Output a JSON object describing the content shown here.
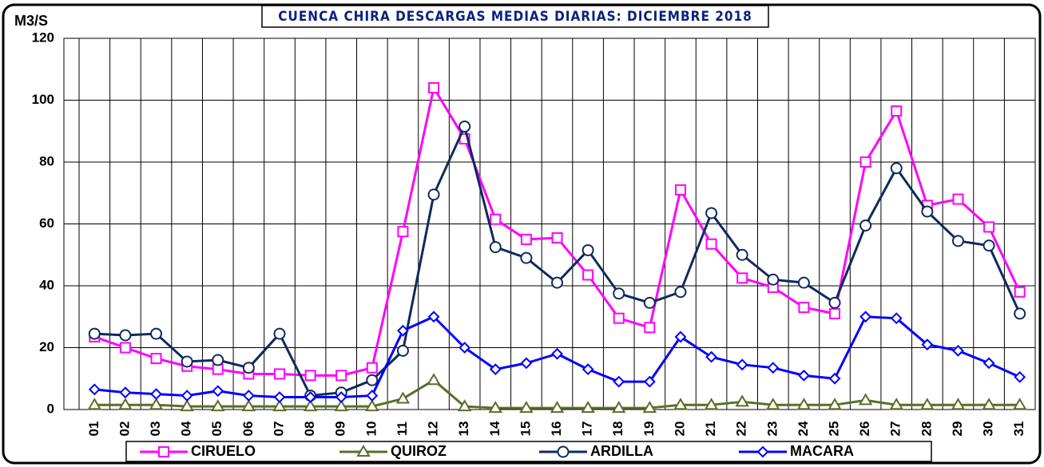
{
  "chart_data": {
    "type": "line",
    "title": "CUENCA CHIRA DESCARGAS MEDIAS DIARIAS: DICIEMBRE 2018",
    "y_label": "M3/S",
    "categories": [
      "01",
      "02",
      "03",
      "04",
      "05",
      "06",
      "07",
      "08",
      "09",
      "10",
      "11",
      "12",
      "13",
      "14",
      "15",
      "16",
      "17",
      "18",
      "19",
      "20",
      "21",
      "22",
      "23",
      "24",
      "25",
      "26",
      "27",
      "28",
      "29",
      "30",
      "31"
    ],
    "ylim": [
      0,
      120
    ],
    "yticks": [
      0,
      20,
      40,
      60,
      80,
      100,
      120
    ],
    "grid": true,
    "series": [
      {
        "name": "CIRUELO",
        "color": "#ff00ff",
        "marker": "square",
        "values": [
          23.5,
          20,
          16.5,
          14,
          13,
          11.5,
          11.5,
          11,
          11,
          13.5,
          57.5,
          104,
          87.5,
          61.5,
          55,
          55.5,
          43.5,
          29.5,
          26.5,
          71,
          53.5,
          42.5,
          39.5,
          33,
          31,
          80,
          96.5,
          66,
          68,
          59,
          38
        ]
      },
      {
        "name": "QUIROZ",
        "color": "#5a6e2a",
        "marker": "triangle",
        "values": [
          1.5,
          1.5,
          1.5,
          1,
          1,
          1,
          1,
          1,
          1,
          1,
          3.5,
          9.5,
          1,
          0.5,
          0.5,
          0.5,
          0.5,
          0.5,
          0.5,
          1.5,
          1.5,
          2.5,
          1.5,
          1.5,
          1.5,
          3,
          1.5,
          1.5,
          1.5,
          1.5,
          1.5
        ]
      },
      {
        "name": "ARDILLA",
        "color": "#0f2a5c",
        "marker": "circle",
        "values": [
          24.5,
          24,
          24.5,
          15.5,
          16,
          13.5,
          24.5,
          4.5,
          5.5,
          9.5,
          19,
          69.5,
          91.5,
          52.5,
          49,
          41,
          51.5,
          37.5,
          34.5,
          38,
          63.5,
          50,
          42,
          41,
          34.5,
          59.5,
          78,
          64,
          54.5,
          53,
          31
        ]
      },
      {
        "name": "MACARA",
        "color": "#0000ff",
        "marker": "diamond",
        "values": [
          6.5,
          5.5,
          5,
          4.5,
          6,
          4.5,
          4,
          4,
          4,
          4.5,
          25.5,
          30,
          20,
          13,
          15,
          18,
          13,
          9,
          9,
          23.5,
          17,
          14.5,
          13.5,
          11,
          10,
          30,
          29.5,
          21,
          19,
          15,
          10.5
        ]
      }
    ]
  }
}
